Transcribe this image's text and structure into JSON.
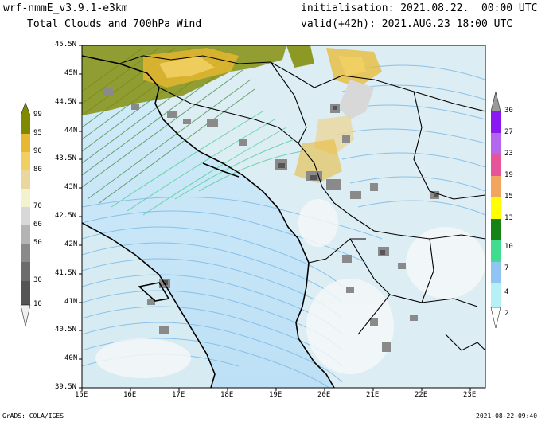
{
  "header": {
    "model": "wrf-nmmE_v3.9.1-e3km",
    "product": "Total Clouds and 700hPa Wind",
    "init": "initialisation: 2021.08.22.  00:00 UTC",
    "valid": "valid(+42h): 2021.AUG.23 18:00 UTC"
  },
  "footer": {
    "credit": "GrADS: COLA/IGES",
    "timestamp": "2021-08-22-09:40"
  },
  "axes": {
    "lon_labels": [
      "15E",
      "16E",
      "17E",
      "18E",
      "19E",
      "20E",
      "21E",
      "22E",
      "23E"
    ],
    "lat_labels": [
      "45.5N",
      "45N",
      "44.5N",
      "44N",
      "43.5N",
      "43N",
      "42.5N",
      "42N",
      "41.5N",
      "41N",
      "40.5N",
      "40N",
      "39.5N"
    ]
  },
  "cloud_scale": {
    "labels": [
      "99",
      "95",
      "90",
      "80",
      "70",
      "60",
      "50",
      "30",
      "10"
    ],
    "colors": [
      "#7f8a00",
      "#e8b830",
      "#f2cf63",
      "#ead7a0",
      "#f2f2cf",
      "#d8d8d8",
      "#b4b4b4",
      "#8a8a8a",
      "#555555"
    ]
  },
  "wind_scale": {
    "labels": [
      "30",
      "27",
      "23",
      "19",
      "15",
      "13",
      "10",
      "7",
      "4",
      "2"
    ],
    "colors": [
      "#9a9a9a",
      "#8a18f0",
      "#b466ee",
      "#e6549a",
      "#f2a560",
      "#ffff00",
      "#168216",
      "#40dc90",
      "#90c4f2",
      "#b4f0f4"
    ]
  },
  "colors": {
    "sea": "#c8eaf8",
    "land": "#d8ecf2",
    "coast": "#000000"
  }
}
